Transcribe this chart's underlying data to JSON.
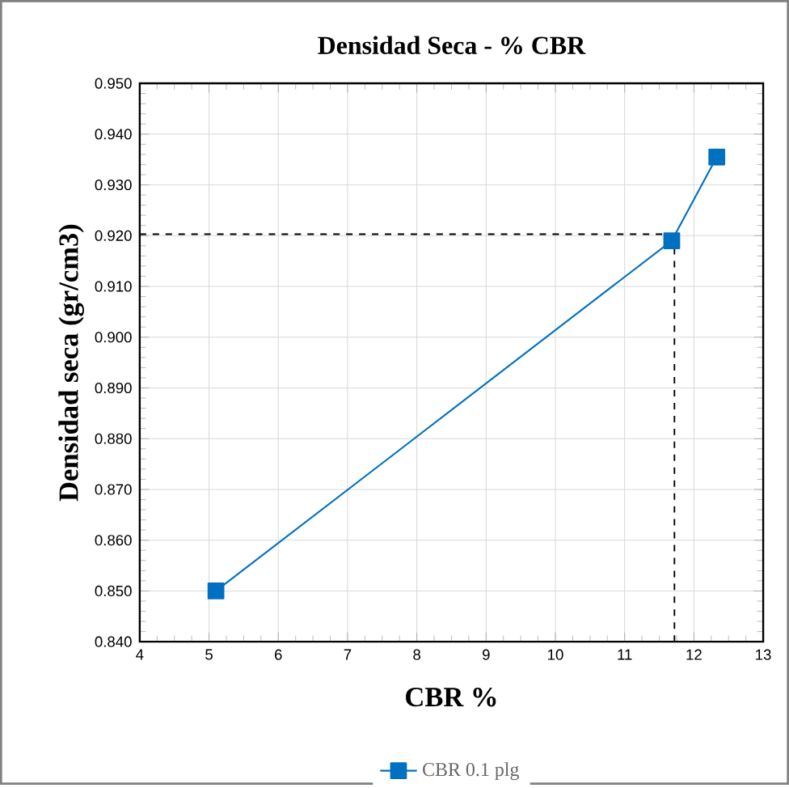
{
  "chart_data": {
    "type": "line",
    "title": "Densidad Seca - % CBR",
    "xlabel": "CBR %",
    "ylabel": "Densidad seca (gr/cm3)",
    "x": [
      5.1,
      11.68,
      12.33
    ],
    "series": [
      {
        "name": "CBR 0.1 plg",
        "color": "#0070c0",
        "values": [
          0.85,
          0.919,
          0.9355
        ]
      }
    ],
    "xlim": [
      4,
      13
    ],
    "xticks": [
      4,
      5,
      6,
      7,
      8,
      9,
      10,
      11,
      12,
      13
    ],
    "ylim": [
      0.84,
      0.95
    ],
    "yticks": [
      {
        "value": 0.84,
        "label": "0.840"
      },
      {
        "value": 0.85,
        "label": "0.850"
      },
      {
        "value": 0.86,
        "label": "0.860"
      },
      {
        "value": 0.87,
        "label": "0.870"
      },
      {
        "value": 0.88,
        "label": "0.880"
      },
      {
        "value": 0.89,
        "label": "0.890"
      },
      {
        "value": 0.9,
        "label": "0.900"
      },
      {
        "value": 0.91,
        "label": "0.910"
      },
      {
        "value": 0.92,
        "label": "0.920"
      },
      {
        "value": 0.93,
        "label": "0.930"
      },
      {
        "value": 0.94,
        "label": "0.940"
      },
      {
        "value": 0.95,
        "label": "0.950"
      }
    ],
    "ref_lines": [
      {
        "axis": "y",
        "value": 0.9203,
        "color": "#000000",
        "line_style": "dashed"
      },
      {
        "axis": "x",
        "value": 11.72,
        "color": "#000000",
        "line_style": "dashed"
      }
    ],
    "grid": true,
    "legend": "bottom",
    "marker": "square",
    "line_style": "solid"
  }
}
